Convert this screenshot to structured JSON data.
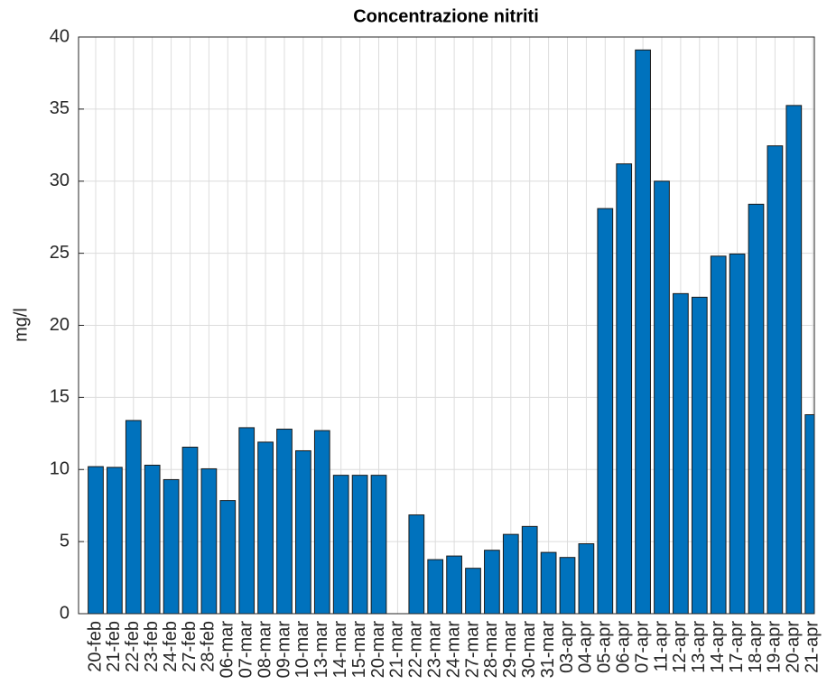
{
  "chart_data": {
    "type": "bar",
    "title": "Concentrazione nitriti",
    "ylabel": "mg/l",
    "categories": [
      "20-feb",
      "21-feb",
      "22-feb",
      "23-feb",
      "24-feb",
      "27-feb",
      "28-feb",
      "06-mar",
      "07-mar",
      "08-mar",
      "09-mar",
      "10-mar",
      "13-mar",
      "14-mar",
      "15-mar",
      "20-mar",
      "21-mar",
      "22-mar",
      "23-mar",
      "24-mar",
      "27-mar",
      "28-mar",
      "29-mar",
      "30-mar",
      "31-mar",
      "03-apr",
      "04-apr",
      "05-apr",
      "06-apr",
      "07-apr",
      "11-apr",
      "12-apr",
      "13-apr",
      "14-apr",
      "17-apr",
      "18-apr",
      "19-apr",
      "20-apr",
      "21-apr"
    ],
    "values": [
      10.2,
      10.15,
      13.4,
      10.3,
      9.3,
      11.55,
      10.05,
      7.85,
      12.9,
      11.9,
      12.8,
      11.3,
      12.7,
      9.6,
      9.6,
      9.6,
      0,
      6.85,
      3.75,
      4.0,
      3.15,
      4.4,
      5.5,
      6.05,
      4.25,
      3.9,
      4.85,
      28.1,
      31.2,
      39.1,
      30.0,
      22.2,
      21.95,
      24.8,
      24.95,
      28.4,
      32.45,
      35.25,
      13.8
    ],
    "color": "#0072bd",
    "ylim": [
      0,
      40
    ],
    "yticks": [
      0,
      5,
      10,
      15,
      20,
      25,
      30,
      35,
      40
    ],
    "grid": true
  }
}
